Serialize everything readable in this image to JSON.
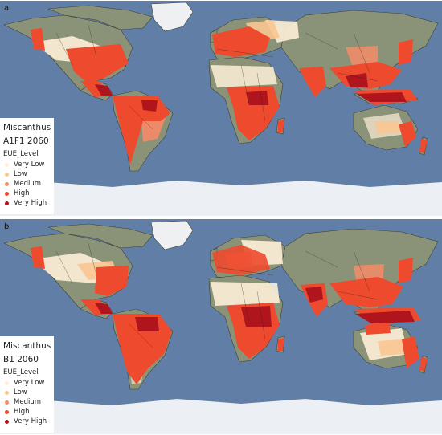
{
  "legend_colors": {
    "very_low": "#fdf0d7",
    "low": "#f9c791",
    "medium": "#f58b68",
    "high": "#ee4a2e",
    "very_high": "#b0141c"
  },
  "map_colors": {
    "ocean": "#5d7ba3",
    "land": "#8a9278",
    "ice": "#eceff3",
    "border": "#26241f"
  },
  "panels": [
    {
      "letter": "a",
      "legend": {
        "crop": "Miscanthus",
        "scenario": "A1F1 2060",
        "field": "EUE_Level",
        "items": [
          {
            "label": "Very Low",
            "color": "#fdf0d7"
          },
          {
            "label": "Low",
            "color": "#f9c791"
          },
          {
            "label": "Medium",
            "color": "#f58b68"
          },
          {
            "label": "High",
            "color": "#ee4a2e"
          },
          {
            "label": "Very High",
            "color": "#b0141c"
          }
        ]
      }
    },
    {
      "letter": "b",
      "legend": {
        "crop": "Miscanthus",
        "scenario": "B1 2060",
        "field": "EUE_Level",
        "items": [
          {
            "label": "Very Low",
            "color": "#fdf0d7"
          },
          {
            "label": "Low",
            "color": "#f9c791"
          },
          {
            "label": "Medium",
            "color": "#f58b68"
          },
          {
            "label": "High",
            "color": "#ee4a2e"
          },
          {
            "label": "Very High",
            "color": "#b0141c"
          }
        ]
      }
    }
  ]
}
